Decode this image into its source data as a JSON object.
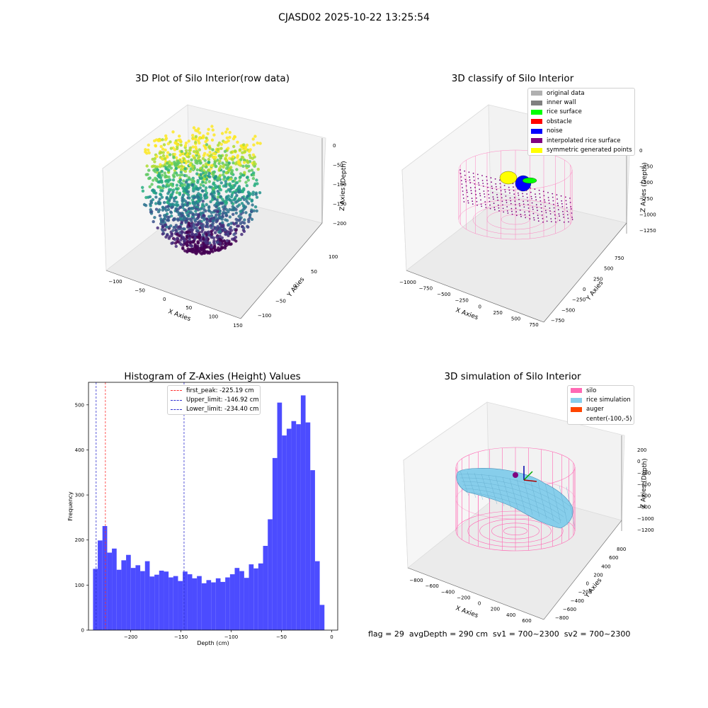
{
  "title": "CJASD02 2025-10-22 13:25:54",
  "footer": "flag = 29  avgDepth = 290 cm  sv1 = 700~2300  sv2 = 700~2300",
  "colors": {
    "histogram_bar": "#4c4cff",
    "first_peak_line": "#ff3030",
    "limit_lines": "#3030d0",
    "silo_wire": "#ff69b4",
    "rice_simulation": "#87ceeb",
    "auger": "#ff4500"
  },
  "chart_data": [
    {
      "type": "scatter",
      "subtype": "3d",
      "title": "3D Plot of Silo Interior(row data)",
      "xlabel": "X Axies",
      "ylabel": "Y Axies",
      "zlabel": "Z Axies (Depth)",
      "x_ticks": [
        "−100",
        "−50",
        "0",
        "50",
        "100",
        "150"
      ],
      "y_ticks": [
        "100",
        "50",
        "0",
        "−50",
        "−100"
      ],
      "z_ticks": [
        "0",
        "−50",
        "−100",
        "−150",
        "−200"
      ],
      "xlim": [
        -120,
        150
      ],
      "ylim": [
        -120,
        120
      ],
      "zlim": [
        -240,
        0
      ],
      "colormap": "viridis"
    },
    {
      "type": "scatter",
      "subtype": "3d",
      "title": "3D classify of Silo Interior",
      "xlabel": "X Axies",
      "ylabel": "Y Axies",
      "zlabel": "Z Axies (Depth)",
      "x_ticks": [
        "−1000",
        "−750",
        "−500",
        "−250",
        "0",
        "250",
        "500",
        "750"
      ],
      "y_ticks": [
        "750",
        "500",
        "250",
        "0",
        "−250",
        "−500",
        "−750"
      ],
      "z_ticks": [
        "0",
        "−250",
        "−500",
        "−750",
        "−1000",
        "−1250"
      ],
      "legend": [
        {
          "label": "original data",
          "color": "#b0b0b0"
        },
        {
          "label": "inner wall",
          "color": "#808080"
        },
        {
          "label": "rice surface",
          "color": "#00ff00"
        },
        {
          "label": "obstacle",
          "color": "#ff0000"
        },
        {
          "label": "noise",
          "color": "#0000ff"
        },
        {
          "label": "interpolated rice surface",
          "color": "#800080"
        },
        {
          "label": "symmetric generated points",
          "color": "#ffff00"
        }
      ]
    },
    {
      "type": "bar",
      "subtype": "histogram",
      "title": "Histogram of Z-Axies (Height) Values",
      "xlabel": "Depth (cm)",
      "ylabel": "Frequency",
      "xlim": [
        -242,
        6
      ],
      "ylim": [
        0,
        550
      ],
      "x_ticks": [
        -200,
        -150,
        -100,
        -50,
        0
      ],
      "y_ticks": [
        0,
        100,
        200,
        300,
        400,
        500
      ],
      "bin_start": -237.5,
      "bin_width": 4.7,
      "values": [
        136,
        199,
        231,
        172,
        181,
        134,
        155,
        167,
        138,
        144,
        131,
        153,
        119,
        123,
        132,
        130,
        117,
        120,
        109,
        130,
        124,
        115,
        120,
        104,
        111,
        106,
        115,
        107,
        117,
        124,
        138,
        131,
        116,
        146,
        137,
        148,
        187,
        246,
        382,
        505,
        432,
        447,
        464,
        457,
        521,
        461,
        355,
        153,
        56
      ],
      "vlines": [
        {
          "label": "first_peak: -225.19 cm",
          "x": -225.19,
          "color": "#ff3030"
        },
        {
          "label": "Upper_limit: -146.92 cm",
          "x": -146.92,
          "color": "#3030d0"
        },
        {
          "label": "Lower_limit: -234.40 cm",
          "x": -234.4,
          "color": "#3030d0"
        }
      ]
    },
    {
      "type": "area",
      "subtype": "3d-surface",
      "title": "3D simulation of Silo Interior",
      "xlabel": "X Axies",
      "ylabel": "Y Axies",
      "zlabel": "Z Axies (Depth)",
      "x_ticks": [
        "−800",
        "−600",
        "−400",
        "−200",
        "0",
        "200",
        "400",
        "600"
      ],
      "y_ticks": [
        "800",
        "600",
        "400",
        "200",
        "0",
        "−200",
        "−400",
        "−600",
        "−800"
      ],
      "z_ticks": [
        "200",
        "0",
        "−200",
        "−400",
        "−600",
        "−800",
        "−1000",
        "−1200"
      ],
      "legend": [
        {
          "label": "silo",
          "color": "#ff69b4"
        },
        {
          "label": "rice simulation",
          "color": "#87ceeb"
        },
        {
          "label": "auger",
          "color": "#ff4500"
        },
        {
          "label": "center(-100,-5)",
          "color": ""
        }
      ]
    }
  ]
}
